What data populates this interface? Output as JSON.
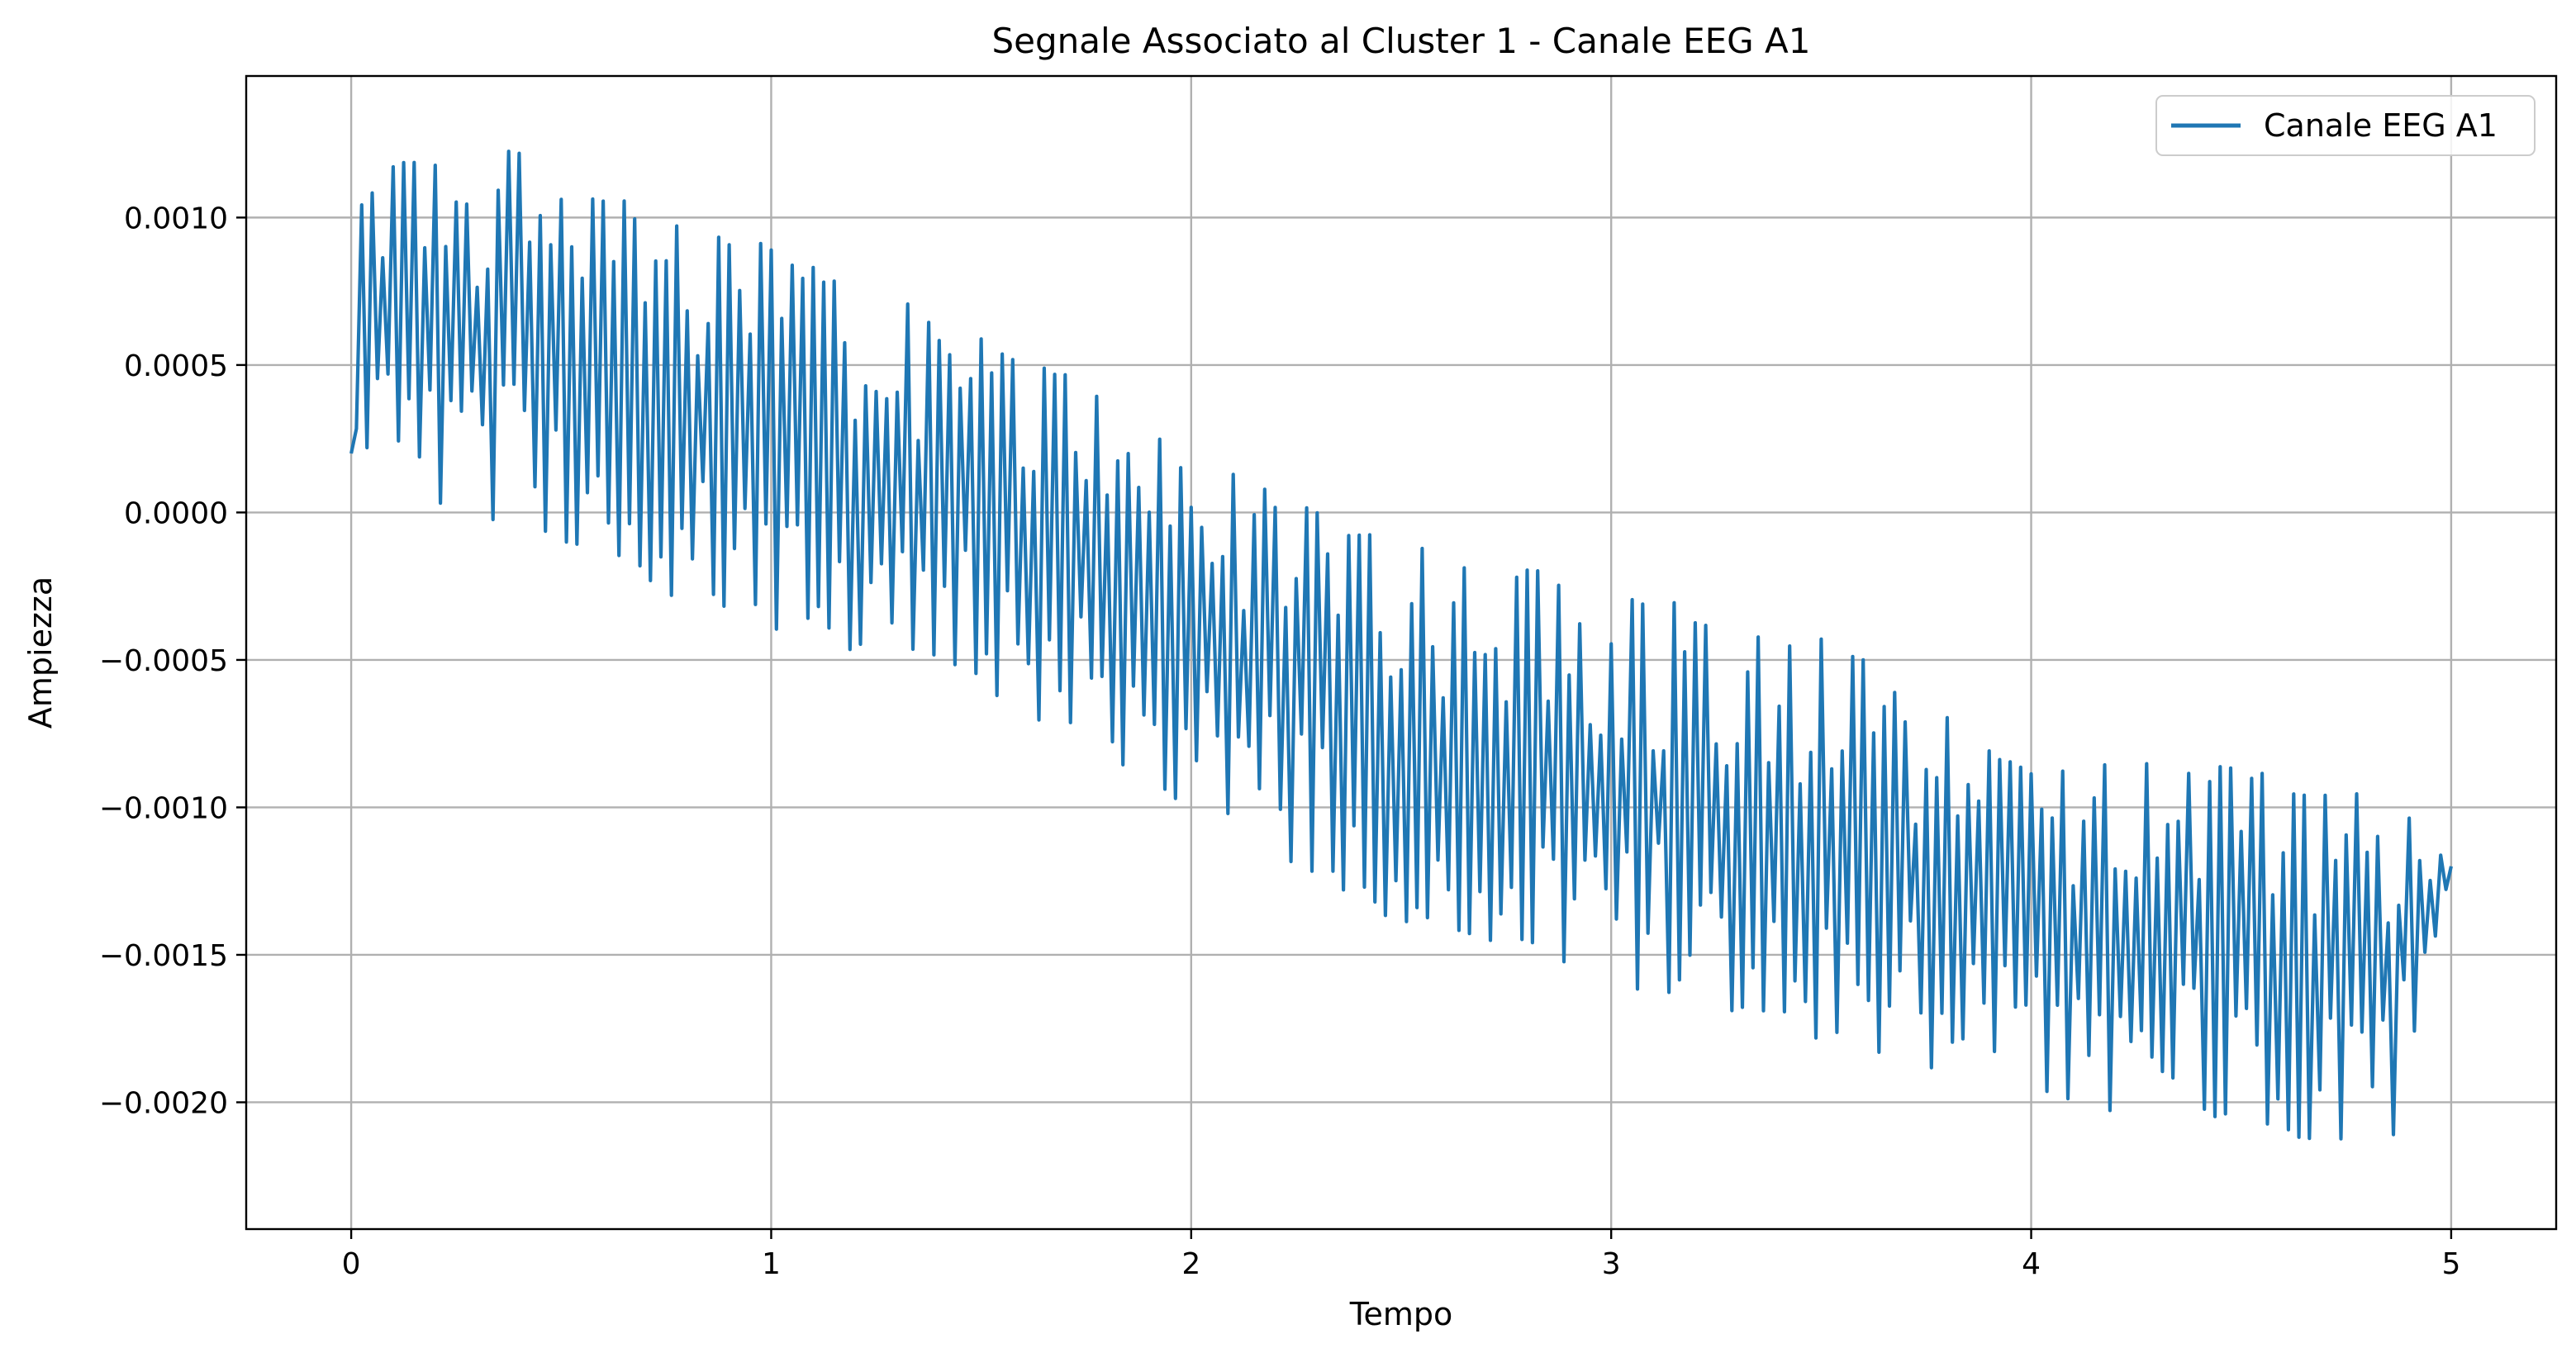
{
  "chart_data": {
    "type": "line",
    "title": "Segnale Associato al Cluster 1 - Canale EEG A1",
    "xlabel": "Tempo",
    "ylabel": "Ampiezza",
    "xlim": [
      -0.25,
      5.25
    ],
    "ylim": [
      -0.00243,
      0.00148
    ],
    "grid": true,
    "legend_position": "top-right",
    "x_ticks": [
      {
        "value": 0,
        "label": "0"
      },
      {
        "value": 1,
        "label": "1"
      },
      {
        "value": 2,
        "label": "2"
      },
      {
        "value": 3,
        "label": "3"
      },
      {
        "value": 4,
        "label": "4"
      },
      {
        "value": 5,
        "label": "5"
      }
    ],
    "y_ticks": [
      {
        "value": 0.001,
        "label": "0.0010"
      },
      {
        "value": 0.0005,
        "label": "0.0005"
      },
      {
        "value": 0.0,
        "label": "0.0000"
      },
      {
        "value": -0.0005,
        "label": "−0.0005"
      },
      {
        "value": -0.001,
        "label": "−0.0010"
      },
      {
        "value": -0.0015,
        "label": "−0.0015"
      },
      {
        "value": -0.002,
        "label": "−0.0020"
      }
    ],
    "series": [
      {
        "name": "Canale EEG A1",
        "color": "#1f77b4",
        "x_start": 0,
        "x_end": 5,
        "upper_envelope": {
          "x": [
            0.0,
            0.2,
            0.45,
            0.6,
            0.8,
            1.0,
            1.5,
            2.0,
            2.5,
            3.0,
            3.5,
            4.0,
            4.5,
            4.85,
            5.0
          ],
          "y": [
            0.00125,
            0.0012,
            0.00125,
            0.0011,
            0.001,
            0.0009,
            0.00065,
            0.0002,
            -0.0001,
            -0.00025,
            -0.0004,
            -0.00085,
            -0.00085,
            -0.00095,
            -0.0012
          ]
        },
        "lower_envelope": {
          "x": [
            0.0,
            0.2,
            0.45,
            0.6,
            0.8,
            1.0,
            1.5,
            2.0,
            2.5,
            3.0,
            3.5,
            4.0,
            4.5,
            4.85,
            5.0
          ],
          "y": [
            0.0002,
            0.0,
            -0.0001,
            -0.0002,
            -0.0003,
            -0.0004,
            -0.0006,
            -0.001,
            -0.0014,
            -0.0016,
            -0.0018,
            -0.002,
            -0.0021,
            -0.0022,
            -0.0012
          ]
        },
        "oscillation_cycles": 200
      }
    ]
  }
}
